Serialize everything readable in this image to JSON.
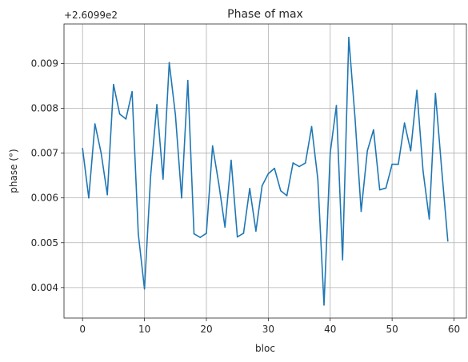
{
  "chart_data": {
    "type": "line",
    "title": "Phase of max",
    "xlabel": "bloc",
    "ylabel": "phase (°)",
    "offset_label": "+2.6099e2",
    "xlim": [
      -3,
      62
    ],
    "ylim": [
      0.00332,
      0.00988
    ],
    "x_ticks": [
      0,
      10,
      20,
      30,
      40,
      50,
      60
    ],
    "x_tick_labels": [
      "0",
      "10",
      "20",
      "30",
      "40",
      "50",
      "60"
    ],
    "y_ticks": [
      0.004,
      0.005,
      0.006,
      0.007,
      0.008,
      0.009
    ],
    "y_tick_labels": [
      "0.004",
      "0.005",
      "0.006",
      "0.007",
      "0.008",
      "0.009"
    ],
    "grid": true,
    "line_color": "#1f77b4",
    "series": [
      {
        "x": [
          0,
          1,
          2,
          3,
          4,
          5,
          6,
          7,
          8,
          9,
          10,
          11,
          12,
          13,
          14,
          15,
          16,
          17,
          18,
          19,
          20,
          21,
          22,
          23,
          24,
          25,
          26,
          27,
          28,
          29,
          30,
          31,
          32,
          33,
          34,
          35,
          36,
          37,
          38,
          39,
          40,
          41,
          42,
          43,
          44,
          45,
          46,
          47,
          48,
          49,
          50,
          51,
          52,
          53,
          54,
          55,
          56,
          57,
          58,
          59
        ],
        "y": [
          0.0071,
          0.006,
          0.00765,
          0.007,
          0.00607,
          0.00853,
          0.00787,
          0.00776,
          0.00837,
          0.0052,
          0.00397,
          0.0065,
          0.00808,
          0.00642,
          0.00902,
          0.00785,
          0.006,
          0.00862,
          0.0052,
          0.00512,
          0.00521,
          0.00716,
          0.00632,
          0.00535,
          0.00684,
          0.00513,
          0.00521,
          0.00621,
          0.00526,
          0.00627,
          0.00654,
          0.00666,
          0.00616,
          0.00605,
          0.00678,
          0.0067,
          0.00678,
          0.00759,
          0.00642,
          0.00361,
          0.007,
          0.00806,
          0.00462,
          0.00958,
          0.0078,
          0.0057,
          0.00705,
          0.00752,
          0.00618,
          0.00622,
          0.00675,
          0.00675,
          0.00767,
          0.00705,
          0.0084,
          0.0066,
          0.00553,
          0.00833,
          0.00665,
          0.00504
        ]
      }
    ]
  }
}
